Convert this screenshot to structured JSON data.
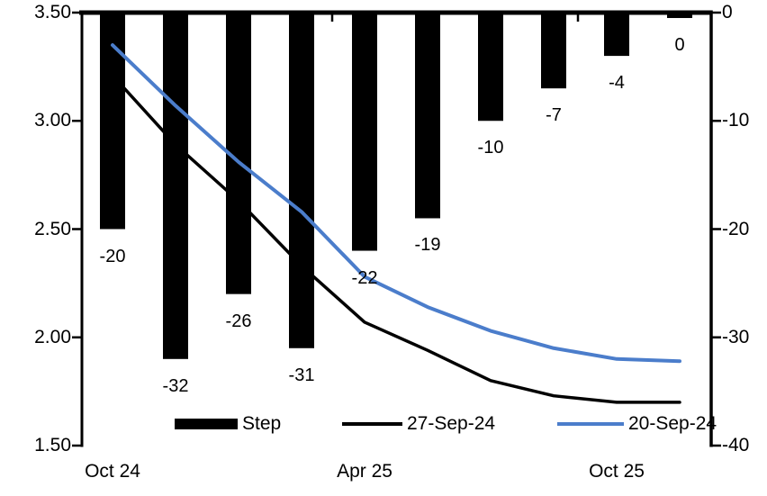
{
  "chart_data": {
    "type": "combo-bar-line",
    "title": "",
    "grid": false,
    "legend_position": "bottom-inside",
    "left_axis": {
      "side": "left",
      "min": 1.5,
      "max": 3.5,
      "tick_labels": [
        "3.50",
        "3.00",
        "2.50",
        "2.00",
        "1.50"
      ]
    },
    "right_axis": {
      "side": "right",
      "min": -40,
      "max": 0,
      "tick_labels": [
        "0",
        "-10",
        "-20",
        "-30",
        "-40"
      ]
    },
    "x_axis": {
      "tick_labels": [
        {
          "text": "Oct 24",
          "bar_index": 0
        },
        {
          "text": "Apr 25",
          "bar_index": 4
        },
        {
          "text": "Oct 25",
          "bar_index": 8
        }
      ]
    },
    "bars": {
      "name": "Step",
      "axis": "right",
      "color": "#000000",
      "values": [
        -20,
        -32,
        -26,
        -31,
        -22,
        -19,
        -10,
        -7,
        -4,
        -0.5
      ],
      "labels": [
        "-20",
        "-32",
        "-26",
        "-31",
        "-22",
        "-19",
        "-10",
        "-7",
        "-4",
        "0"
      ]
    },
    "lines": [
      {
        "name": "27-Sep-24",
        "axis": "left",
        "color": "#000000",
        "stroke_width": 3.5,
        "values": [
          3.21,
          2.89,
          2.63,
          2.33,
          2.07,
          1.94,
          1.8,
          1.73,
          1.7,
          1.7
        ]
      },
      {
        "name": "20-Sep-24",
        "axis": "left",
        "color": "#4B7DCB",
        "stroke_width": 4,
        "values": [
          3.35,
          3.07,
          2.81,
          2.58,
          2.28,
          2.14,
          2.03,
          1.95,
          1.9,
          1.89
        ]
      }
    ],
    "legend": [
      {
        "label": "Step",
        "swatch": "bar"
      },
      {
        "label": "27-Sep-24",
        "swatch": "line"
      },
      {
        "label": "20-Sep-24",
        "swatch": "line"
      }
    ]
  }
}
